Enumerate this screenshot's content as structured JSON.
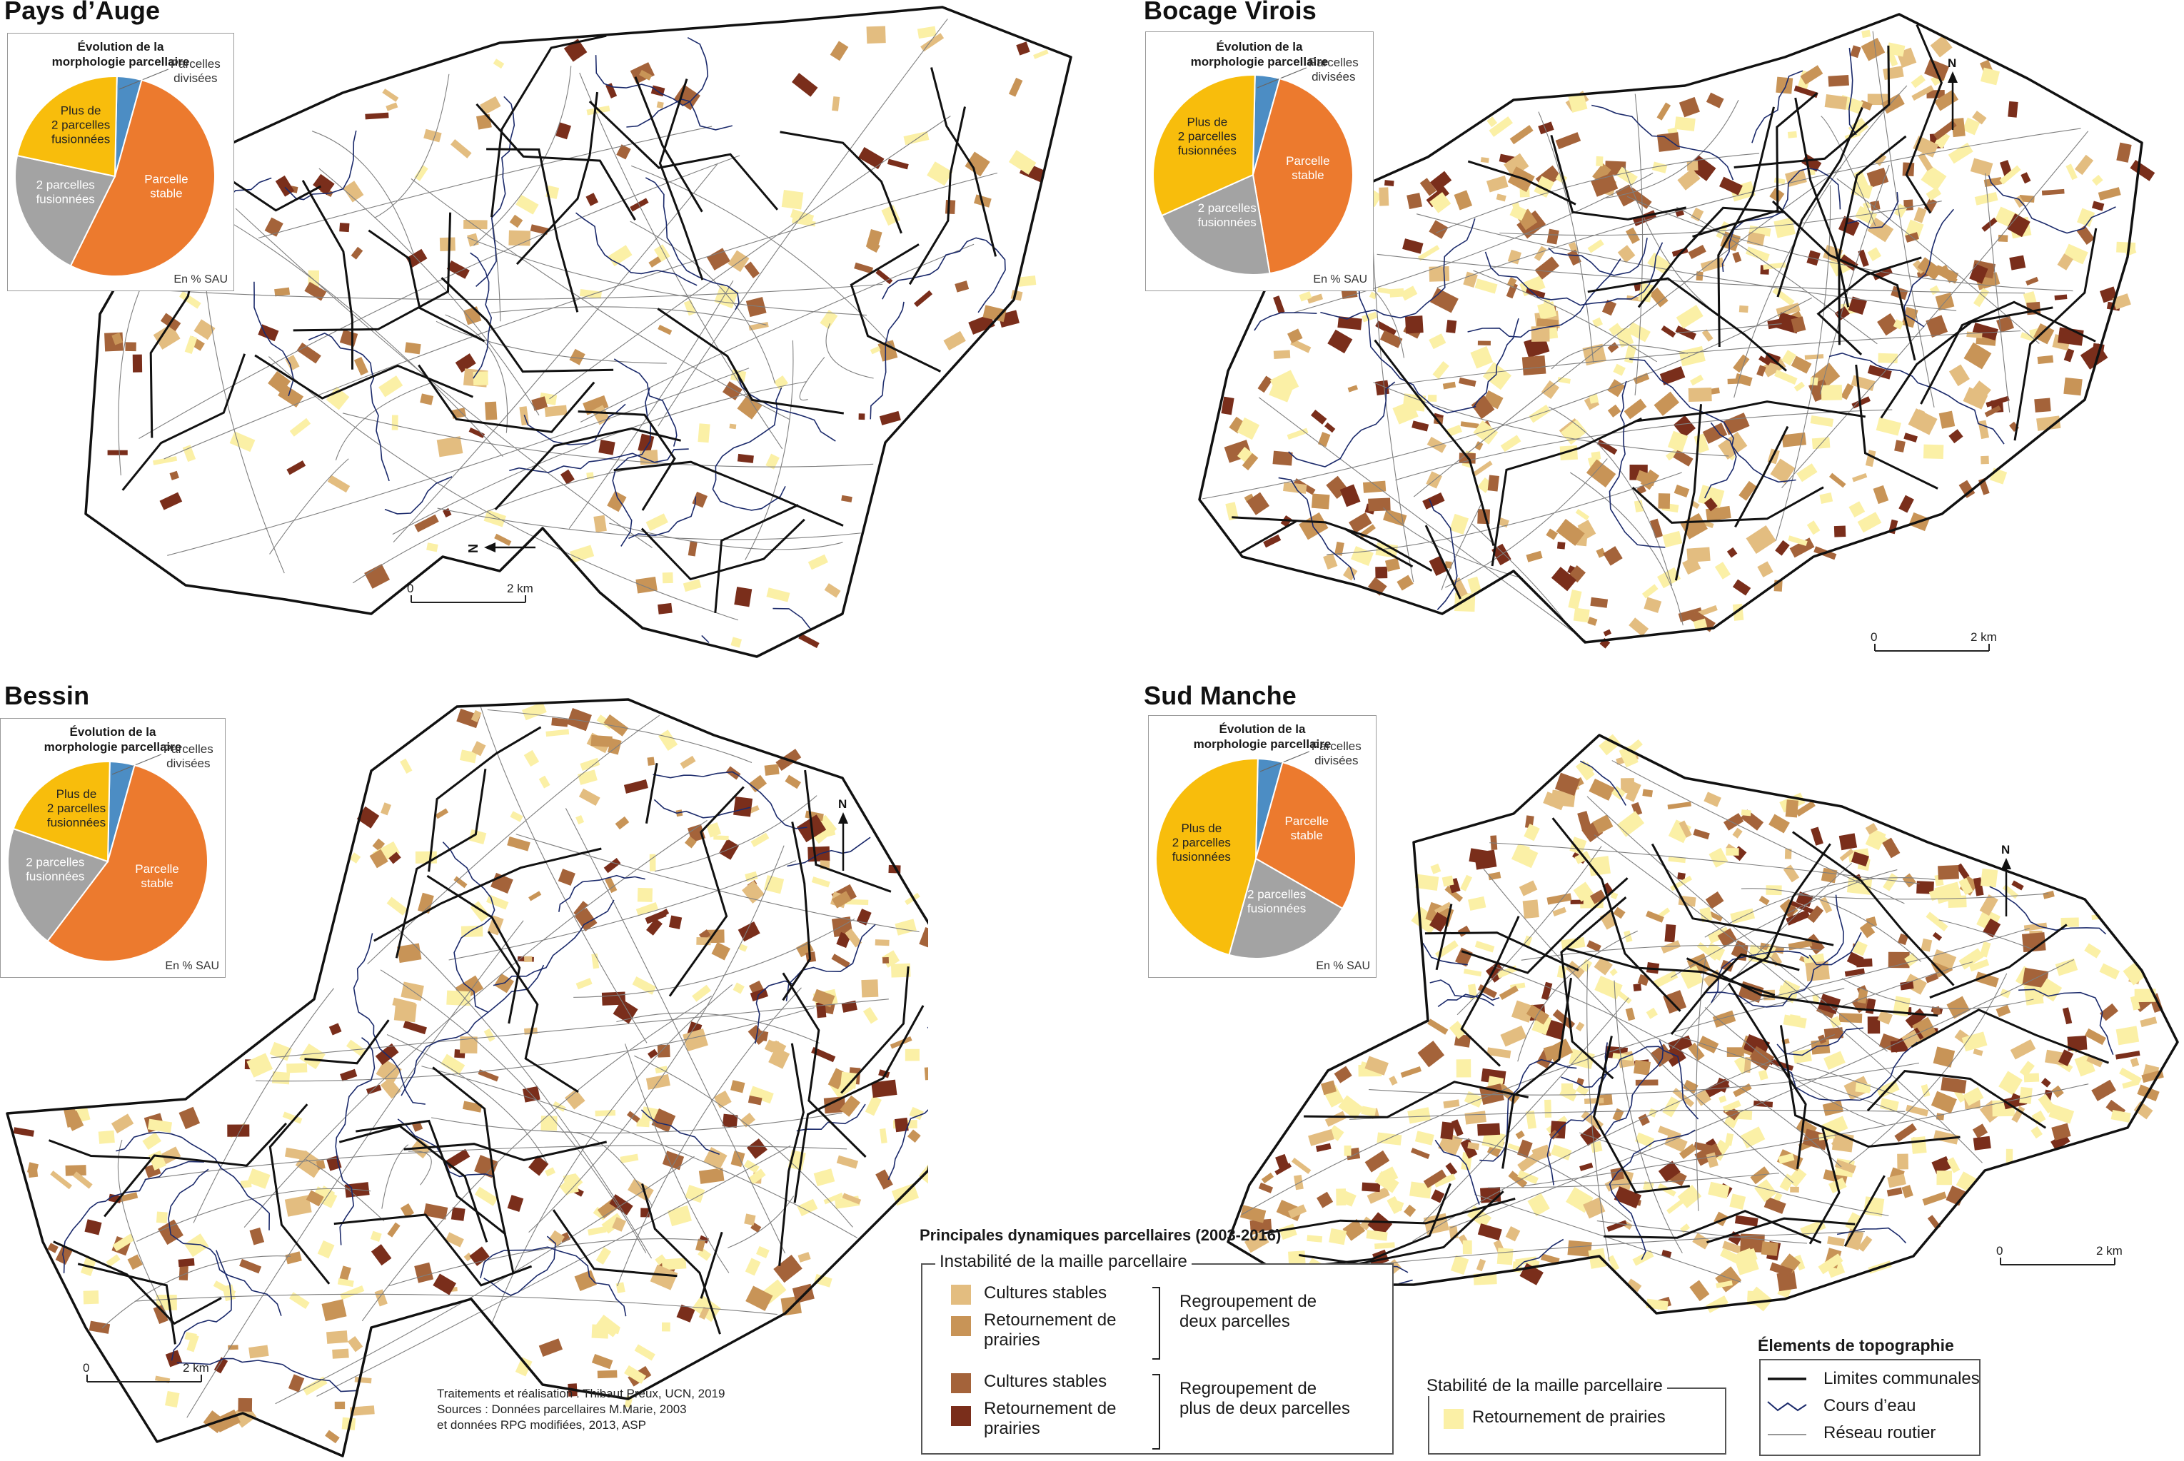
{
  "colors": {
    "cultures_stables_2": "#e3bd80",
    "retournement_2": "#c89457",
    "cultures_stables_plus": "#a4633a",
    "retournement_plus": "#7a2e1b",
    "stabilite_retournement": "#fbf0a6",
    "pie_divisees": "#4c8dc4",
    "pie_stable": "#ec7a2e",
    "pie_2fus": "#a3a3a3",
    "pie_plus2": "#f8bd0c",
    "boundary": "#111111",
    "river": "#1b2a6b",
    "road": "#7f7f7f"
  },
  "panels": [
    {
      "id": "pays-auge",
      "title": "Pays d’Auge",
      "pie": {
        "title_line1": "Évolution de la",
        "title_line2": "morphologie parcellaire",
        "unit": "En % SAU",
        "labels": {
          "divisees": "Parcelles\ndivisées",
          "stable": "Parcelle\nstable",
          "two": "2 parcelles\nfusionnées",
          "plus": "Plus de\n2 parcelles\nfusionnées"
        },
        "chart_data": {
          "type": "pie",
          "categories": [
            "Parcelles divisées",
            "Parcelle stable",
            "2 parcelles fusionnées",
            "Plus de 2 parcelles fusionnées"
          ],
          "values": [
            4,
            53,
            21,
            22
          ]
        }
      },
      "north_label": "N",
      "scale": {
        "zero": "0",
        "end": "2 km"
      }
    },
    {
      "id": "bocage-virois",
      "title": "Bocage Virois",
      "pie": {
        "title_line1": "Évolution de la",
        "title_line2": "morphologie parcellaire",
        "unit": "En % SAU",
        "labels": {
          "divisees": "Parcelles\ndivisées",
          "stable": "Parcelle\nstable",
          "two": "2 parcelles\nfusionnées",
          "plus": "Plus de\n2 parcelles\nfusionnées"
        },
        "chart_data": {
          "type": "pie",
          "categories": [
            "Parcelles divisées",
            "Parcelle stable",
            "2 parcelles fusionnées",
            "Plus de 2 parcelles fusionnées"
          ],
          "values": [
            4,
            43,
            21,
            32
          ]
        }
      },
      "north_label": "N",
      "scale": {
        "zero": "0",
        "end": "2 km"
      }
    },
    {
      "id": "bessin",
      "title": "Bessin",
      "pie": {
        "title_line1": "Évolution de la",
        "title_line2": "morphologie parcellaire",
        "unit": "En % SAU",
        "labels": {
          "divisees": "Parcelles\ndivisées",
          "stable": "Parcelle\nstable",
          "two": "2 parcelles\nfusionnées",
          "plus": "Plus de\n2 parcelles\nfusionnées"
        },
        "chart_data": {
          "type": "pie",
          "categories": [
            "Parcelles divisées",
            "Parcelle stable",
            "2 parcelles fusionnées",
            "Plus de 2 parcelles fusionnées"
          ],
          "values": [
            4,
            56,
            20,
            20
          ]
        }
      },
      "north_label": "N",
      "scale": {
        "zero": "0",
        "end": "2 km"
      }
    },
    {
      "id": "sud-manche",
      "title": "Sud Manche",
      "pie": {
        "title_line1": "Évolution de la",
        "title_line2": "morphologie parcellaire",
        "unit": "En % SAU",
        "labels": {
          "divisees": "Parcelles\ndivisées",
          "stable": "Parcelle\nstable",
          "two": "2 parcelles\nfusionnées",
          "plus": "Plus de\n2 parcelles\nfusionnées"
        },
        "chart_data": {
          "type": "pie",
          "categories": [
            "Parcelles divisées",
            "Parcelle stable",
            "2 parcelles fusionnées",
            "Plus de 2 parcelles fusionnées"
          ],
          "values": [
            4,
            29,
            21,
            46
          ]
        }
      },
      "north_label": "N",
      "scale": {
        "zero": "0",
        "end": "2 km"
      }
    }
  ],
  "legend": {
    "title": "Principales dynamiques parcellaires (2003-2016)",
    "instabilite_title": "Instabilité de la maille parcellaire",
    "cultures_stables": "Cultures stables",
    "retournement_line1": "Retournement de",
    "retournement_line2": "prairies",
    "regroupement_deux_1": "Regroupement de",
    "regroupement_deux_2": "deux parcelles",
    "regroupement_plus_1": "Regroupement de",
    "regroupement_plus_2": "plus de deux parcelles",
    "stabilite_title": "Stabilité de la maille parcellaire",
    "retournement_full": "Retournement de prairies",
    "topo_title": "Élements de topographie",
    "limites": "Limites communales",
    "cours": "Cours d’eau",
    "reseau": "Réseau routier"
  },
  "credits": {
    "line1": "Traitements et réalisation : Thibaut Preux, UCN, 2019",
    "line2": "Sources : Données parcellaires M.Marie, 2003",
    "line3": "et données RPG modifiées, 2013, ASP"
  }
}
